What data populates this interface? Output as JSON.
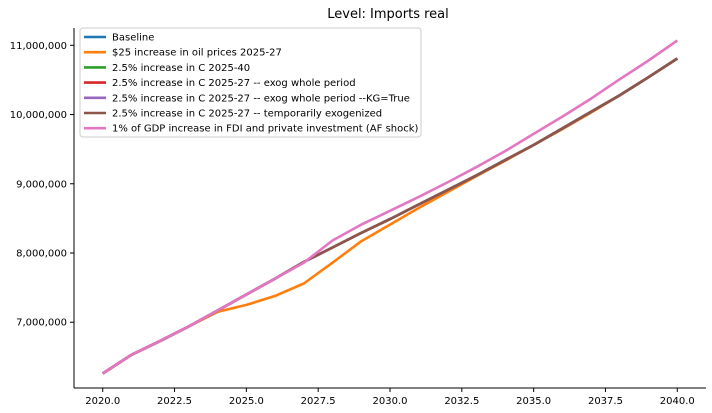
{
  "chart_data": {
    "type": "line",
    "title": "Level: Imports real",
    "xlabel": "",
    "ylabel": "",
    "xlim": [
      2019.0,
      2041.0
    ],
    "ylim": [
      6050000,
      11250000
    ],
    "x_ticks": [
      2020.0,
      2022.5,
      2025.0,
      2027.5,
      2030.0,
      2032.5,
      2035.0,
      2037.5,
      2040.0
    ],
    "x_tick_labels": [
      "2020.0",
      "2022.5",
      "2025.0",
      "2027.5",
      "2030.0",
      "2032.5",
      "2035.0",
      "2037.5",
      "2040.0"
    ],
    "y_ticks": [
      7000000,
      8000000,
      9000000,
      10000000,
      11000000
    ],
    "y_tick_labels": [
      "7,000,000",
      "8,000,000",
      "9,000,000",
      "10,000,000",
      "11,000,000"
    ],
    "grid": false,
    "legend_position": "top-left",
    "x": [
      2020,
      2021,
      2022,
      2023,
      2024,
      2025,
      2026,
      2027,
      2028,
      2029,
      2030,
      2031,
      2032,
      2033,
      2034,
      2035,
      2036,
      2037,
      2038,
      2039,
      2040
    ],
    "series": [
      {
        "name": "Baseline",
        "color": "#1f77b4",
        "values": [
          6260000,
          6530000,
          6730000,
          6940000,
          7170000,
          7400000,
          7630000,
          7870000,
          8080000,
          8290000,
          8490000,
          8700000,
          8910000,
          9120000,
          9340000,
          9560000,
          9800000,
          10040000,
          10280000,
          10540000,
          10810000
        ]
      },
      {
        "name": "$25 increase in oil prices 2025-27",
        "color": "#ff7f0e",
        "values": [
          6260000,
          6530000,
          6730000,
          6940000,
          7150000,
          7250000,
          7380000,
          7560000,
          7860000,
          8170000,
          8410000,
          8650000,
          8880000,
          9110000,
          9330000,
          9560000,
          9790000,
          10030000,
          10280000,
          10540000,
          10810000
        ]
      },
      {
        "name": "2.5% increase in C 2025-40",
        "color": "#2ca02c",
        "values": [
          6260000,
          6530000,
          6730000,
          6940000,
          7170000,
          7400000,
          7630000,
          7870000,
          8080000,
          8290000,
          8490000,
          8700000,
          8910000,
          9120000,
          9340000,
          9560000,
          9800000,
          10040000,
          10280000,
          10540000,
          10810000
        ]
      },
      {
        "name": "2.5% increase in C 2025-27 -- exog whole period",
        "color": "#d62728",
        "values": [
          6260000,
          6530000,
          6730000,
          6940000,
          7170000,
          7400000,
          7630000,
          7870000,
          8080000,
          8290000,
          8490000,
          8700000,
          8910000,
          9120000,
          9340000,
          9560000,
          9800000,
          10040000,
          10280000,
          10540000,
          10810000
        ]
      },
      {
        "name": "2.5% increase in C 2025-27 -- exog whole period --KG=True",
        "color": "#9467bd",
        "values": [
          6260000,
          6530000,
          6730000,
          6940000,
          7170000,
          7400000,
          7630000,
          7870000,
          8080000,
          8290000,
          8490000,
          8700000,
          8910000,
          9120000,
          9340000,
          9560000,
          9800000,
          10040000,
          10280000,
          10540000,
          10810000
        ]
      },
      {
        "name": "2.5% increase in C 2025-27 -- temporarily exogenized",
        "color": "#8c564b",
        "values": [
          6260000,
          6530000,
          6730000,
          6940000,
          7170000,
          7400000,
          7630000,
          7870000,
          8080000,
          8290000,
          8490000,
          8700000,
          8910000,
          9120000,
          9340000,
          9560000,
          9800000,
          10040000,
          10280000,
          10540000,
          10810000
        ]
      },
      {
        "name": "1% of GDP increase in FDI and private investment (AF shock)",
        "color": "#e377c2",
        "values": [
          6260000,
          6530000,
          6730000,
          6940000,
          7170000,
          7400000,
          7630000,
          7860000,
          8180000,
          8410000,
          8610000,
          8810000,
          9020000,
          9240000,
          9470000,
          9720000,
          9970000,
          10230000,
          10510000,
          10780000,
          11070000
        ]
      }
    ]
  }
}
